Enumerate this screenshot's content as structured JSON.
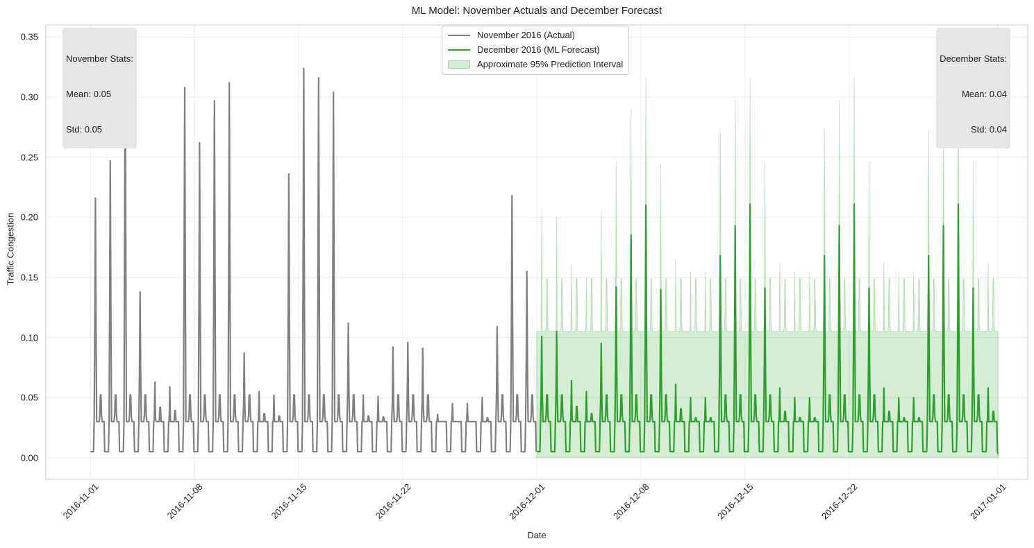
{
  "chart_data": {
    "type": "line",
    "title": "ML Model: November Actuals and December Forecast",
    "xlabel": "Date",
    "ylabel": "Traffic Congestion",
    "x_range": [
      "2016-10-29",
      "2017-01-03"
    ],
    "ylim": [
      -0.018,
      0.36
    ],
    "y_ticks": [
      "0.00",
      "0.05",
      "0.10",
      "0.15",
      "0.20",
      "0.25",
      "0.30",
      "0.35"
    ],
    "x_ticks": [
      "2016-11-01",
      "2016-11-08",
      "2016-11-15",
      "2016-11-22",
      "2016-12-01",
      "2016-12-08",
      "2016-12-15",
      "2016-12-22",
      "2017-01-01"
    ],
    "grid": true,
    "legend_position": "top-center",
    "colors": {
      "actual": "#808080",
      "forecast": "#2ca02c",
      "interval_fill": "#2ca02c",
      "grid": "#ebebeb",
      "statbox": "#e6e6e6"
    },
    "series": [
      {
        "name": "November 2016 (Actual)",
        "sampling": "daily peak profile, hourly detail approximated",
        "start": "2016-11-01",
        "daily_peaks": [
          0.216,
          0.247,
          0.343,
          0.138,
          0.063,
          0.059,
          0.308,
          0.262,
          0.297,
          0.312,
          0.087,
          0.055,
          0.052,
          0.236,
          0.324,
          0.316,
          0.304,
          0.112,
          0.052,
          0.051,
          0.092,
          0.096,
          0.091,
          0.036,
          0.045,
          0.045,
          0.05,
          0.109,
          0.218,
          0.155
        ],
        "mean": 0.05,
        "std": 0.05
      },
      {
        "name": "December 2016 (ML Forecast)",
        "sampling": "daily peak profile, hourly detail approximated",
        "start": "2016-12-01",
        "daily_peaks": [
          0.101,
          0.105,
          0.064,
          0.055,
          0.095,
          0.142,
          0.185,
          0.21,
          0.14,
          0.061,
          0.05,
          0.05,
          0.168,
          0.193,
          0.211,
          0.141,
          0.058,
          0.05,
          0.05,
          0.168,
          0.193,
          0.211,
          0.141,
          0.058,
          0.05,
          0.05,
          0.168,
          0.193,
          0.211,
          0.141,
          0.058
        ],
        "mean": 0.04,
        "std": 0.04
      },
      {
        "name": "Approximate 95% Prediction Interval",
        "type": "band",
        "start": "2016-12-01",
        "upper_daily_peaks": [
          0.206,
          0.2,
          0.16,
          0.15,
          0.205,
          0.247,
          0.29,
          0.316,
          0.245,
          0.165,
          0.155,
          0.155,
          0.274,
          0.298,
          0.316,
          0.246,
          0.163,
          0.155,
          0.155,
          0.274,
          0.298,
          0.316,
          0.246,
          0.163,
          0.155,
          0.155,
          0.274,
          0.298,
          0.316,
          0.246,
          0.163
        ],
        "upper_baseline": 0.105,
        "lower": 0.0
      }
    ],
    "stats_boxes": {
      "november": {
        "heading": "November Stats:",
        "mean": "Mean: 0.05",
        "std": "Std: 0.05"
      },
      "december": {
        "heading": "December Stats:",
        "mean": "Mean: 0.04",
        "std": "Std: 0.04"
      }
    }
  }
}
